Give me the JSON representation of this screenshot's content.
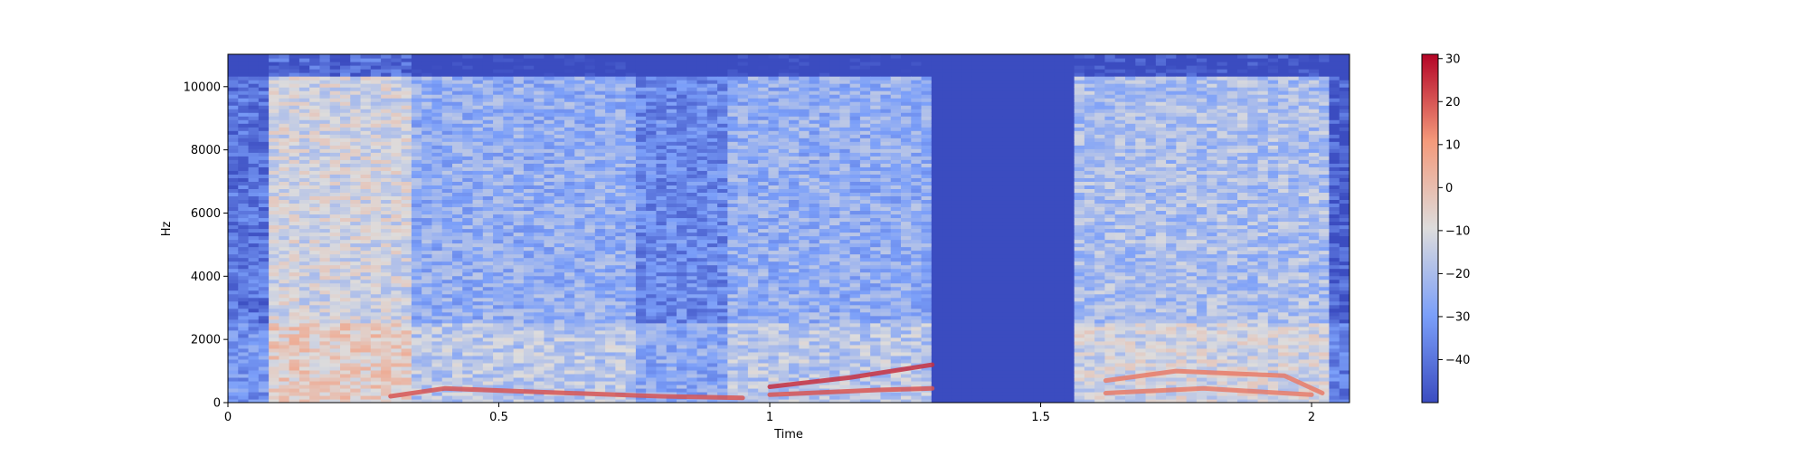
{
  "chart_data": {
    "type": "heatmap",
    "title": "",
    "xlabel": "Time",
    "ylabel": "Hz",
    "xlim": [
      0,
      2.07
    ],
    "ylim": [
      0,
      11025
    ],
    "x_ticks": [
      {
        "value": 0,
        "label": "0"
      },
      {
        "value": 0.5,
        "label": "0.5"
      },
      {
        "value": 1,
        "label": "1"
      },
      {
        "value": 1.5,
        "label": "1.5"
      },
      {
        "value": 2,
        "label": "2"
      }
    ],
    "y_ticks": [
      {
        "value": 0,
        "label": "0"
      },
      {
        "value": 2000,
        "label": "2000"
      },
      {
        "value": 4000,
        "label": "4000"
      },
      {
        "value": 6000,
        "label": "6000"
      },
      {
        "value": 8000,
        "label": "8000"
      },
      {
        "value": 10000,
        "label": "10000"
      }
    ],
    "colormap": "coolwarm",
    "colorbar": {
      "range": [
        -50,
        31
      ],
      "ticks": [
        {
          "value": 30,
          "label": "30"
        },
        {
          "value": 20,
          "label": "20"
        },
        {
          "value": 10,
          "label": "10"
        },
        {
          "value": 0,
          "label": "0"
        },
        {
          "value": -10,
          "label": "−10"
        },
        {
          "value": -20,
          "label": "−20"
        },
        {
          "value": -30,
          "label": "−30"
        },
        {
          "value": -40,
          "label": "−40"
        }
      ]
    },
    "segments": [
      {
        "start": 0.0,
        "end": 0.07,
        "level": -40
      },
      {
        "start": 0.07,
        "end": 0.33,
        "level": -12
      },
      {
        "start": 0.33,
        "end": 0.75,
        "level": -25
      },
      {
        "start": 0.75,
        "end": 0.93,
        "level": -35
      },
      {
        "start": 0.93,
        "end": 1.3,
        "level": -25
      },
      {
        "start": 1.3,
        "end": 1.56,
        "level": -50
      },
      {
        "start": 1.56,
        "end": 2.03,
        "level": -20
      },
      {
        "start": 2.03,
        "end": 2.07,
        "level": -45
      }
    ],
    "formants": [
      {
        "x": [
          0.3,
          0.4,
          0.55,
          0.8,
          0.95
        ],
        "y": [
          200,
          450,
          350,
          200,
          150
        ],
        "level": 20
      },
      {
        "x": [
          1.0,
          1.15,
          1.3
        ],
        "y": [
          500,
          800,
          1200
        ],
        "level": 25
      },
      {
        "x": [
          1.0,
          1.2,
          1.3
        ],
        "y": [
          250,
          400,
          450
        ],
        "level": 20
      },
      {
        "x": [
          1.62,
          1.75,
          1.95,
          2.02
        ],
        "y": [
          700,
          1000,
          850,
          300
        ],
        "level": 15
      },
      {
        "x": [
          1.62,
          1.8,
          2.0
        ],
        "y": [
          300,
          450,
          250
        ],
        "level": 15
      }
    ]
  }
}
